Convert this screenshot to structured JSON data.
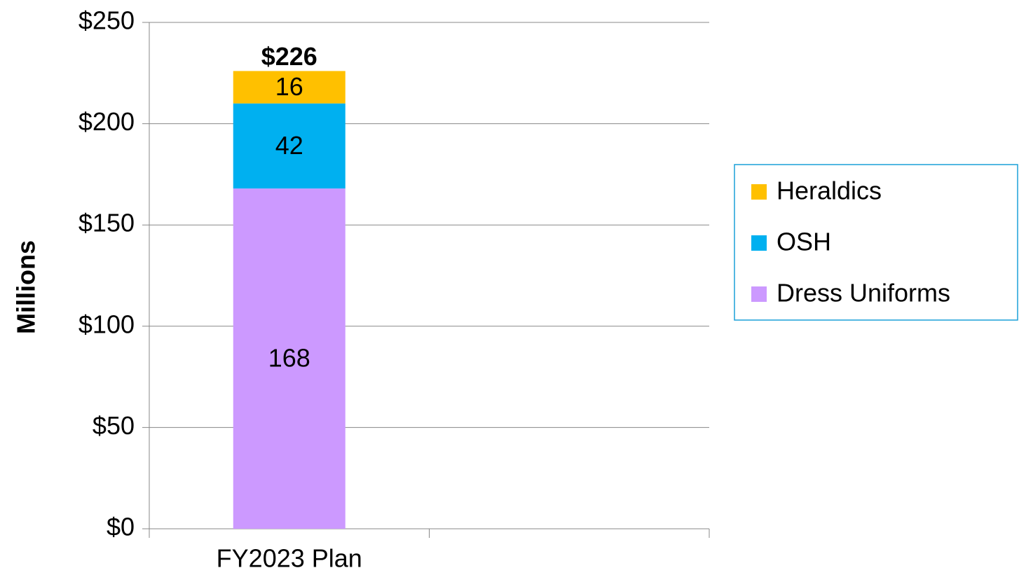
{
  "chart_data": {
    "type": "stacked_bar",
    "y_label": "Millions",
    "categories": [
      "FY2023 Plan",
      null
    ],
    "series": [
      {
        "name": "Dress Uniforms",
        "color": "#cc99ff",
        "values": [
          168,
          null
        ]
      },
      {
        "name": "OSH",
        "color": "#00b0f0",
        "values": [
          42,
          null
        ]
      },
      {
        "name": "Heraldics",
        "color": "#ffc000",
        "values": [
          16,
          null
        ]
      }
    ],
    "totals": [
      226,
      null
    ],
    "total_labels": [
      "$226",
      null
    ],
    "ylim": [
      0,
      250
    ],
    "yticks": [
      {
        "value": 0,
        "label": "$0"
      },
      {
        "value": 50,
        "label": "$50"
      },
      {
        "value": 100,
        "label": "$100"
      },
      {
        "value": 150,
        "label": "$150"
      },
      {
        "value": 200,
        "label": "$200"
      },
      {
        "value": 250,
        "label": "$250"
      }
    ],
    "grid": true,
    "legend": "right"
  }
}
